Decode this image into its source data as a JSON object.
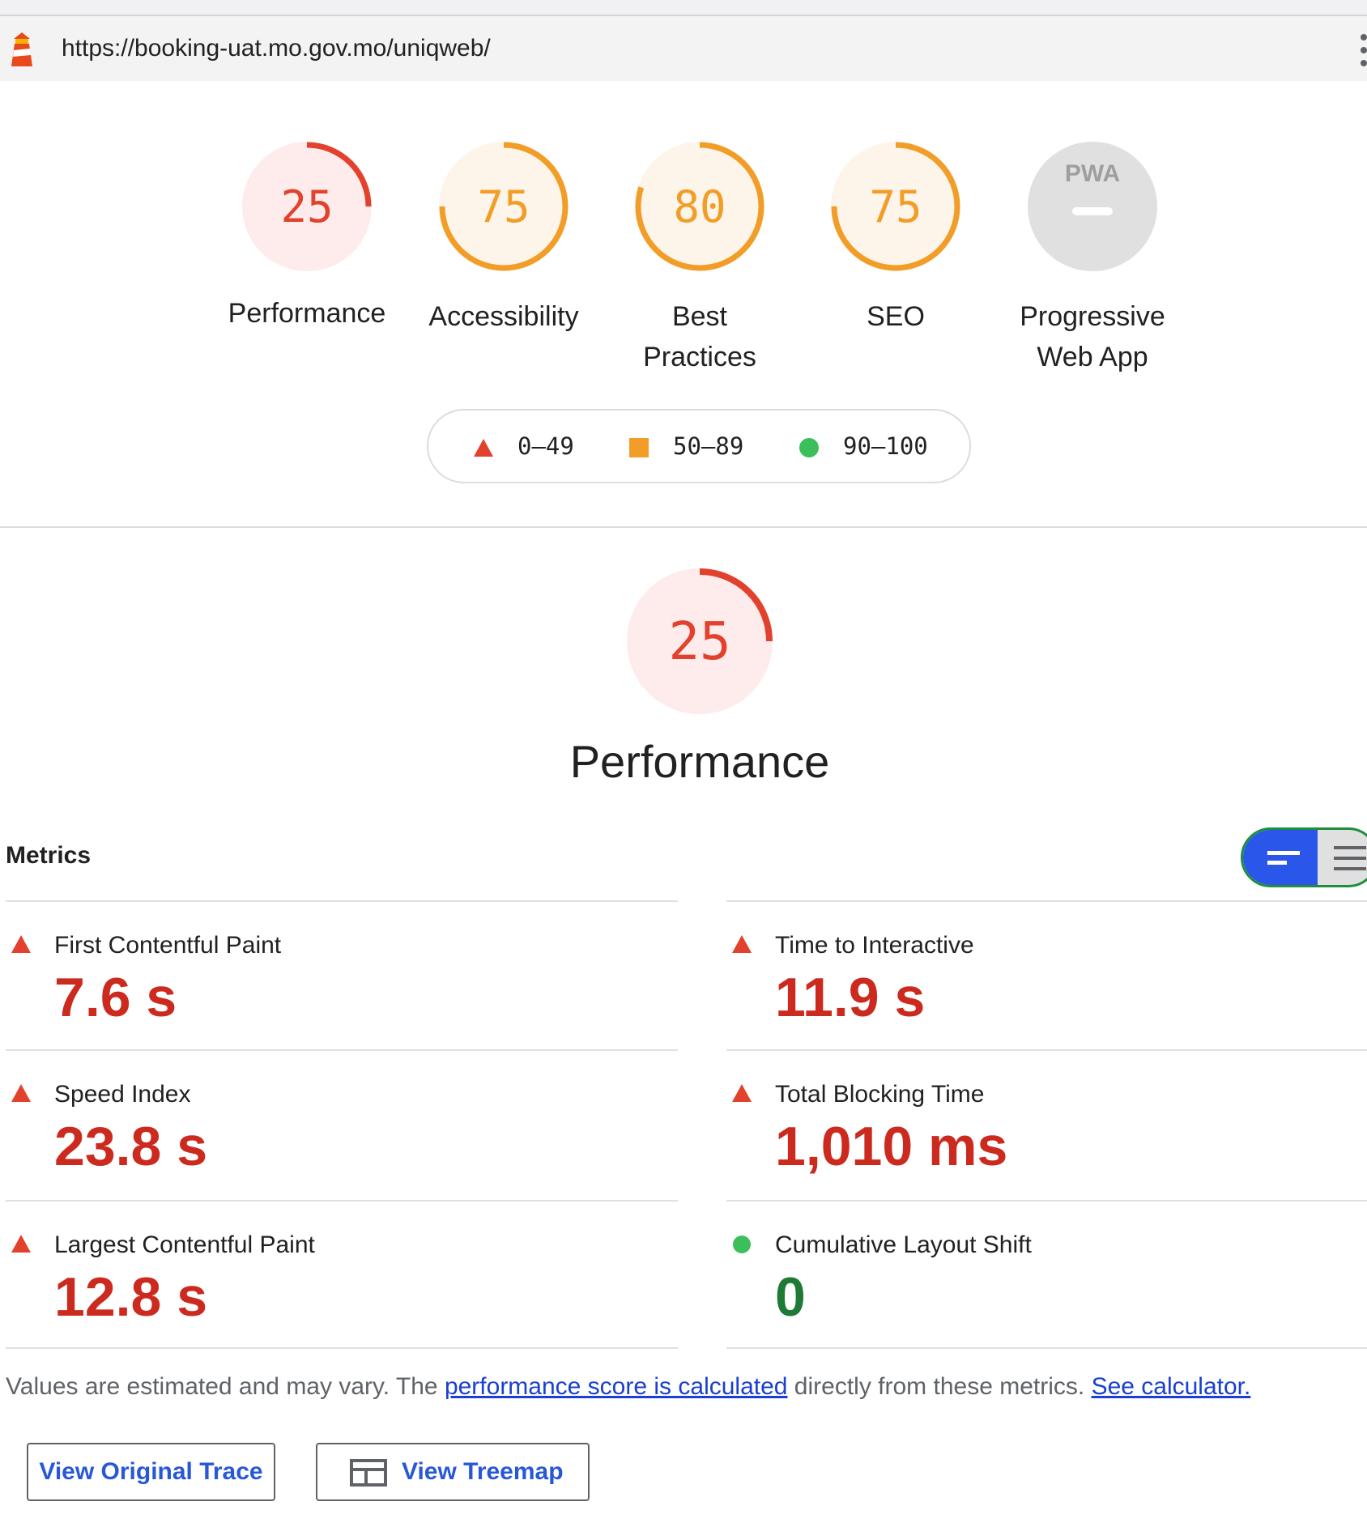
{
  "browser": {
    "url": "https://booking-uat.mo.gov.mo/uniqweb/"
  },
  "categories": [
    {
      "label": "Performance",
      "score": "25",
      "value": 25,
      "rating": "fail"
    },
    {
      "label": "Accessibility",
      "score": "75",
      "value": 75,
      "rating": "average"
    },
    {
      "label": "Best Practices",
      "score": "80",
      "value": 80,
      "rating": "average"
    },
    {
      "label": "SEO",
      "score": "75",
      "value": 75,
      "rating": "average"
    },
    {
      "label": "Progressive Web App",
      "badge": "PWA",
      "rating": "na"
    }
  ],
  "legend": {
    "fail": "0–49",
    "average": "50–89",
    "pass": "90–100"
  },
  "colors": {
    "fail": "#e2412d",
    "fail_bg": "#fdeceb",
    "average": "#f29d27",
    "average_bg": "#fef5ea",
    "pass": "#3bbf5b",
    "na": "#9e9e9e",
    "na_bg": "#e0e0e0"
  },
  "performance_section": {
    "score": "25",
    "value": 25,
    "title": "Performance"
  },
  "metrics": {
    "heading": "Metrics",
    "items": [
      {
        "name": "First Contentful Paint",
        "value": "7.6 s",
        "rating": "fail"
      },
      {
        "name": "Time to Interactive",
        "value": "11.9 s",
        "rating": "fail"
      },
      {
        "name": "Speed Index",
        "value": "23.8 s",
        "rating": "fail"
      },
      {
        "name": "Total Blocking Time",
        "value": "1,010 ms",
        "rating": "fail"
      },
      {
        "name": "Largest Contentful Paint",
        "value": "12.8 s",
        "rating": "fail"
      },
      {
        "name": "Cumulative Layout Shift",
        "value": "0",
        "rating": "pass"
      }
    ]
  },
  "footer_note": {
    "prefix": "Values are estimated and may vary. The ",
    "link1": "performance score is calculated",
    "middle": " directly from these metrics. ",
    "link2": "See calculator."
  },
  "buttons": {
    "trace": "View Original Trace",
    "treemap": "View Treemap"
  }
}
